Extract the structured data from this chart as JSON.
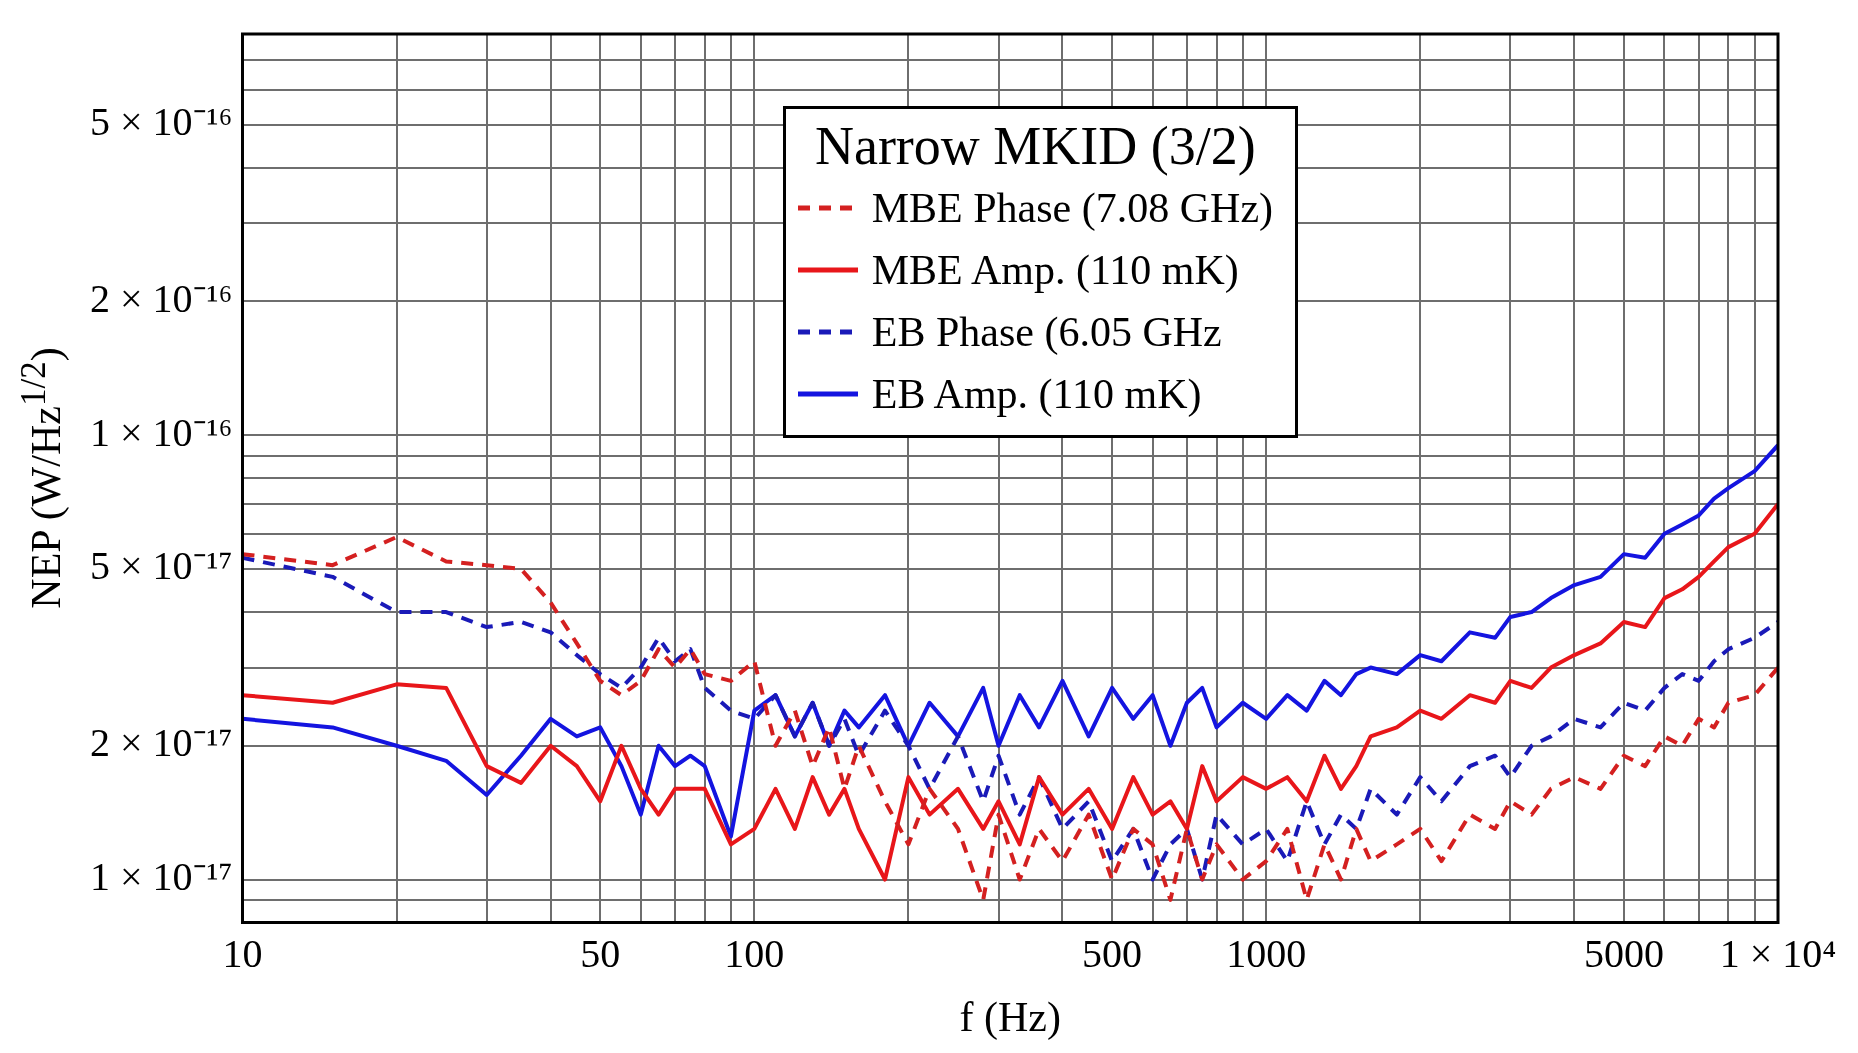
{
  "chart_data": {
    "type": "line",
    "xlabel": "f (Hz)",
    "ylabel": "NEP (W/Hz$^{1/2}$)",
    "legend_title": "Narrow MKID (3/2)",
    "legend": "top",
    "grid": true,
    "log": "xy",
    "xlim": [
      10,
      10000
    ],
    "ylim": [
      8e-18,
      8e-16
    ],
    "xticks": [
      10,
      {
        "value": 20,
        "label": null
      },
      {
        "value": 30,
        "label": null
      },
      {
        "value": 40,
        "label": null
      },
      50,
      {
        "value": 60,
        "label": null
      },
      {
        "value": 70,
        "label": null
      },
      {
        "value": 80,
        "label": null
      },
      {
        "value": 90,
        "label": null
      },
      100,
      {
        "value": 200,
        "label": null
      },
      {
        "value": 300,
        "label": null
      },
      {
        "value": 400,
        "label": null
      },
      500,
      {
        "value": 600,
        "label": null
      },
      {
        "value": 700,
        "label": null
      },
      {
        "value": 800,
        "label": null
      },
      {
        "value": 900,
        "label": null
      },
      1000,
      {
        "value": 2000,
        "label": null
      },
      {
        "value": 3000,
        "label": null
      },
      {
        "value": 4000,
        "label": null
      },
      5000,
      {
        "value": 6000,
        "label": null
      },
      {
        "value": 7000,
        "label": null
      },
      {
        "value": 8000,
        "label": null
      },
      {
        "value": 9000,
        "label": null
      },
      {
        "value": 10000,
        "label": "1 × 10⁴"
      }
    ],
    "yticks": [
      {
        "value": 8e-18,
        "label": null
      },
      {
        "value": 9e-18,
        "label": null
      },
      {
        "value": 1e-17,
        "label": "1 × 10⁻¹⁷"
      },
      {
        "value": 2e-17,
        "label": "2 × 10⁻¹⁷"
      },
      {
        "value": 3e-17,
        "label": null
      },
      {
        "value": 4e-17,
        "label": null
      },
      {
        "value": 5e-17,
        "label": "5 × 10⁻¹⁷"
      },
      {
        "value": 6e-17,
        "label": null
      },
      {
        "value": 7e-17,
        "label": null
      },
      {
        "value": 8e-17,
        "label": null
      },
      {
        "value": 9e-17,
        "label": null
      },
      {
        "value": 1e-16,
        "label": "1 × 10⁻¹⁶"
      },
      {
        "value": 2e-16,
        "label": "2 × 10⁻¹⁶"
      },
      {
        "value": 3e-16,
        "label": null
      },
      {
        "value": 4e-16,
        "label": null
      },
      {
        "value": 5e-16,
        "label": "5 × 10⁻¹⁶"
      },
      {
        "value": 6e-16,
        "label": null
      },
      {
        "value": 7e-16,
        "label": null
      },
      {
        "value": 8e-16,
        "label": null
      }
    ],
    "x": [
      10,
      15,
      20,
      25,
      30,
      35,
      40,
      45,
      50,
      55,
      60,
      65,
      70,
      75,
      80,
      90,
      100,
      110,
      120,
      130,
      140,
      150,
      160,
      180,
      200,
      220,
      250,
      280,
      300,
      330,
      360,
      400,
      450,
      500,
      550,
      600,
      650,
      700,
      750,
      800,
      900,
      1000,
      1100,
      1200,
      1300,
      1400,
      1500,
      1600,
      1800,
      2000,
      2200,
      2500,
      2800,
      3000,
      3300,
      3600,
      4000,
      4500,
      5000,
      5500,
      6000,
      6500,
      7000,
      7500,
      8000,
      9000,
      10000
    ],
    "series": [
      {
        "name": "MBE Phase (7.08 GHz)",
        "color": "#d42020",
        "line_style": "dashed",
        "values": [
          5.4e-17,
          5.1e-17,
          5.9e-17,
          5.2e-17,
          5.1e-17,
          5e-17,
          4.2e-17,
          3.4e-17,
          2.8e-17,
          2.6e-17,
          2.8e-17,
          3.3e-17,
          3e-17,
          3.3e-17,
          2.9e-17,
          2.8e-17,
          3.1e-17,
          2e-17,
          2.4e-17,
          1.8e-17,
          2.2e-17,
          1.6e-17,
          2e-17,
          1.5e-17,
          1.2e-17,
          1.6e-17,
          1.3e-17,
          9e-18,
          1.4e-17,
          1e-17,
          1.3e-17,
          1.1e-17,
          1.4e-17,
          1e-17,
          1.3e-17,
          1.2e-17,
          9e-18,
          1.3e-17,
          1e-17,
          1.2e-17,
          1e-17,
          1.1e-17,
          1.3e-17,
          9e-18,
          1.2e-17,
          1e-17,
          1.3e-17,
          1.1e-17,
          1.2e-17,
          1.3e-17,
          1.1e-17,
          1.4e-17,
          1.3e-17,
          1.5e-17,
          1.4e-17,
          1.6e-17,
          1.7e-17,
          1.6e-17,
          1.9e-17,
          1.8e-17,
          2.1e-17,
          2e-17,
          2.3e-17,
          2.2e-17,
          2.5e-17,
          2.6e-17,
          3e-17
        ]
      },
      {
        "name": "MBE Amp. (110 mK)",
        "color": "#e8161a",
        "line_style": "solid",
        "values": [
          2.6e-17,
          2.5e-17,
          2.75e-17,
          2.7e-17,
          1.8e-17,
          1.65e-17,
          2e-17,
          1.8e-17,
          1.5e-17,
          2e-17,
          1.6e-17,
          1.4e-17,
          1.6e-17,
          1.6e-17,
          1.6e-17,
          1.2e-17,
          1.3e-17,
          1.6e-17,
          1.3e-17,
          1.7e-17,
          1.4e-17,
          1.6e-17,
          1.3e-17,
          1e-17,
          1.7e-17,
          1.4e-17,
          1.6e-17,
          1.3e-17,
          1.5e-17,
          1.2e-17,
          1.7e-17,
          1.4e-17,
          1.6e-17,
          1.3e-17,
          1.7e-17,
          1.4e-17,
          1.5e-17,
          1.3e-17,
          1.8e-17,
          1.5e-17,
          1.7e-17,
          1.6e-17,
          1.7e-17,
          1.5e-17,
          1.9e-17,
          1.6e-17,
          1.8e-17,
          2.1e-17,
          2.2e-17,
          2.4e-17,
          2.3e-17,
          2.6e-17,
          2.5e-17,
          2.8e-17,
          2.7e-17,
          3e-17,
          3.2e-17,
          3.4e-17,
          3.8e-17,
          3.7e-17,
          4.3e-17,
          4.5e-17,
          4.8e-17,
          5.2e-17,
          5.6e-17,
          6e-17,
          7e-17
        ]
      },
      {
        "name": "EB Phase (6.05 GHz",
        "color": "#1a1ab8",
        "line_style": "dashed",
        "values": [
          5.3e-17,
          4.8e-17,
          4e-17,
          4e-17,
          3.7e-17,
          3.8e-17,
          3.6e-17,
          3.2e-17,
          2.9e-17,
          2.7e-17,
          3e-17,
          3.5e-17,
          3.1e-17,
          3.3e-17,
          2.7e-17,
          2.4e-17,
          2.3e-17,
          2.6e-17,
          2.1e-17,
          2.5e-17,
          2e-17,
          2.3e-17,
          1.9e-17,
          2.4e-17,
          2e-17,
          1.6e-17,
          2.1e-17,
          1.5e-17,
          1.9e-17,
          1.4e-17,
          1.7e-17,
          1.3e-17,
          1.5e-17,
          1.1e-17,
          1.3e-17,
          1e-17,
          1.2e-17,
          1.3e-17,
          1e-17,
          1.4e-17,
          1.2e-17,
          1.3e-17,
          1.1e-17,
          1.5e-17,
          1.2e-17,
          1.4e-17,
          1.3e-17,
          1.6e-17,
          1.4e-17,
          1.7e-17,
          1.5e-17,
          1.8e-17,
          1.9e-17,
          1.7e-17,
          2e-17,
          2.1e-17,
          2.3e-17,
          2.2e-17,
          2.5e-17,
          2.4e-17,
          2.7e-17,
          2.9e-17,
          2.8e-17,
          3.1e-17,
          3.3e-17,
          3.5e-17,
          3.8e-17
        ]
      },
      {
        "name": "EB Amp. (110 mK)",
        "color": "#1414e0",
        "line_style": "solid",
        "values": [
          2.3e-17,
          2.2e-17,
          2e-17,
          1.85e-17,
          1.55e-17,
          1.9e-17,
          2.3e-17,
          2.1e-17,
          2.2e-17,
          1.8e-17,
          1.4e-17,
          2e-17,
          1.8e-17,
          1.9e-17,
          1.8e-17,
          1.25e-17,
          2.4e-17,
          2.6e-17,
          2.1e-17,
          2.5e-17,
          2e-17,
          2.4e-17,
          2.2e-17,
          2.6e-17,
          2e-17,
          2.5e-17,
          2.1e-17,
          2.7e-17,
          2e-17,
          2.6e-17,
          2.2e-17,
          2.8e-17,
          2.1e-17,
          2.7e-17,
          2.3e-17,
          2.6e-17,
          2e-17,
          2.5e-17,
          2.7e-17,
          2.2e-17,
          2.5e-17,
          2.3e-17,
          2.6e-17,
          2.4e-17,
          2.8e-17,
          2.6e-17,
          2.9e-17,
          3e-17,
          2.9e-17,
          3.2e-17,
          3.1e-17,
          3.6e-17,
          3.5e-17,
          3.9e-17,
          4e-17,
          4.3e-17,
          4.6e-17,
          4.8e-17,
          5.4e-17,
          5.3e-17,
          6e-17,
          6.3e-17,
          6.6e-17,
          7.2e-17,
          7.6e-17,
          8.3e-17,
          9.5e-17
        ]
      }
    ]
  }
}
